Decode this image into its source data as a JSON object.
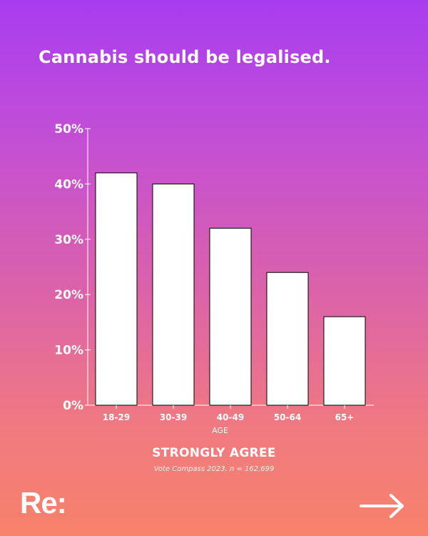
{
  "title": "Cannabis should be legalised.",
  "caption": "STRONGLY AGREE",
  "source": "Vote Compass 2023. n = 162,699",
  "logo": "Re:",
  "next_icon": "arrow-right-icon",
  "colors": {
    "bar_fill": "#ffffff",
    "bar_stroke": "#000000",
    "axis": "#ffffff"
  },
  "chart_data": {
    "type": "bar",
    "categories": [
      "18-29",
      "30-39",
      "40-49",
      "50-64",
      "65+"
    ],
    "values": [
      42,
      40,
      32,
      24,
      16
    ],
    "yticks": [
      "0%",
      "10%",
      "20%",
      "30%",
      "40%",
      "50%"
    ],
    "ylim": [
      0,
      50
    ],
    "xlabel": "AGE",
    "ylabel": "",
    "grid": false,
    "legend": "none"
  }
}
